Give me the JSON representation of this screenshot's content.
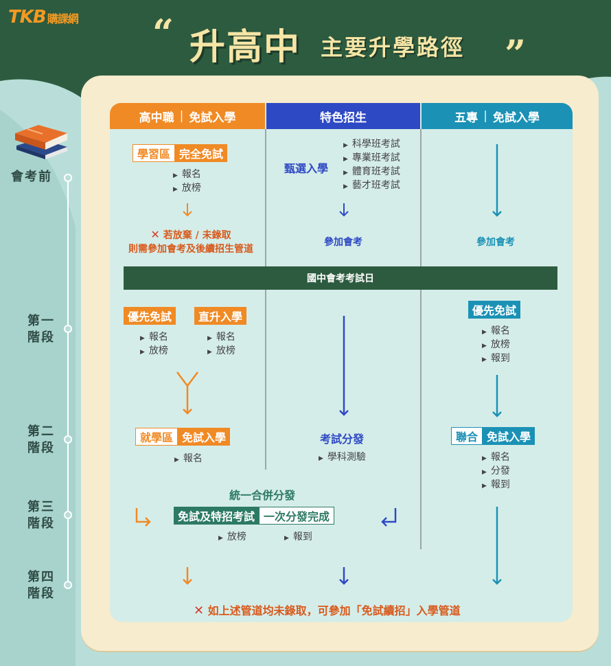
{
  "header": {
    "logo_text": "TKB",
    "logo_sub": "購課網",
    "quote_open": "“",
    "quote_close": "”",
    "title_main": "升高中",
    "title_sub": "主要升學路徑"
  },
  "columns": {
    "c1": {
      "a": "高中職",
      "b": "免試入學"
    },
    "c2": {
      "a": "特色招生"
    },
    "c3": {
      "a": "五專",
      "b": "免試入學"
    }
  },
  "timeline": {
    "pre": "會考前",
    "s1a": "第一",
    "s1b": "階段",
    "s2a": "第二",
    "s2b": "階段",
    "s3a": "第三",
    "s3b": "階段",
    "s4a": "第四",
    "s4b": "階段"
  },
  "pre_exam": {
    "c1_box_a": "學習區",
    "c1_box_b": "完全免試",
    "c1_items": [
      "報名",
      "放榜"
    ],
    "c1_note_1": "若放棄 / 未錄取",
    "c1_note_2": "則需參加會考及後續招生管道",
    "c2_label": "甄選入學",
    "c2_items": [
      "科學班考試",
      "專業班考試",
      "體育班考試",
      "藝才班考試"
    ],
    "c2_note": "參加會考",
    "c3_note": "參加會考"
  },
  "exam_day": "國中會考考試日",
  "stage1": {
    "c1_box1": "優先免試",
    "c1_box1_items": [
      "報名",
      "放榜"
    ],
    "c1_box2": "直升入學",
    "c1_box2_items": [
      "報名",
      "放榜"
    ],
    "c3_box": "優先免試",
    "c3_items": [
      "報名",
      "放榜",
      "報到"
    ]
  },
  "stage2": {
    "c1_box_a": "就學區",
    "c1_box_b": "免試入學",
    "c1_items": [
      "報名"
    ],
    "c2_title": "考試分發",
    "c2_items": [
      "學科測驗"
    ],
    "c3_box_a": "聯合",
    "c3_box_b": "免試入學",
    "c3_items": [
      "報名",
      "分發",
      "報到"
    ]
  },
  "stage3": {
    "title": "統一合併分發",
    "box_a": "免試及特招考試",
    "box_b": "一次分發完成",
    "items": [
      "放榜",
      "報到"
    ]
  },
  "footer_note": "如上述管道均未錄取，可參加「免試續招」入學管道",
  "colors": {
    "orange": "#f08a24",
    "blue": "#2e49c4",
    "teal": "#1b91b5",
    "green": "#2d5b3f",
    "red": "#d83a2a"
  }
}
